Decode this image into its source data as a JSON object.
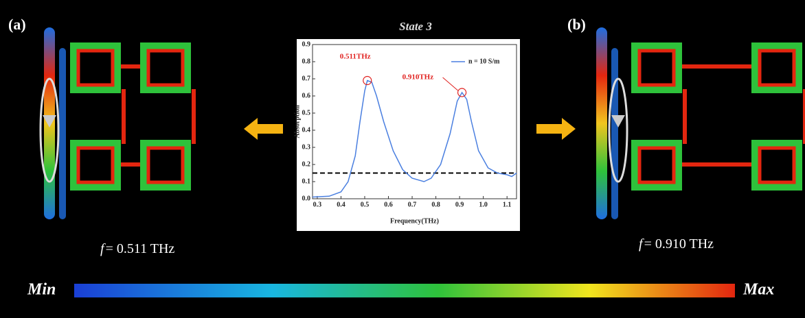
{
  "panels": [
    {
      "label": "(a)",
      "freq_symbol": "f",
      "freq_text": "= 0.511 THz"
    },
    {
      "label": "(b)",
      "freq_symbol": "f",
      "freq_text": "= 0.910 THz"
    }
  ],
  "colorbar": {
    "min_label": "Min",
    "max_label": "Max"
  },
  "chart_data": {
    "type": "line",
    "title": "State 3",
    "x_label": "Frequency(THz)",
    "y_label": "Absorption",
    "x": [
      0.28,
      0.35,
      0.4,
      0.43,
      0.46,
      0.48,
      0.5,
      0.511,
      0.53,
      0.55,
      0.58,
      0.62,
      0.66,
      0.7,
      0.75,
      0.78,
      0.82,
      0.86,
      0.89,
      0.91,
      0.93,
      0.95,
      0.98,
      1.02,
      1.06,
      1.1,
      1.12,
      1.14
    ],
    "series": [
      {
        "name": "n = 10 S/m",
        "color": "#4a7fe0",
        "values": [
          0.01,
          0.015,
          0.04,
          0.1,
          0.25,
          0.45,
          0.63,
          0.69,
          0.68,
          0.6,
          0.45,
          0.28,
          0.17,
          0.12,
          0.1,
          0.12,
          0.2,
          0.38,
          0.57,
          0.62,
          0.58,
          0.45,
          0.28,
          0.18,
          0.15,
          0.14,
          0.13,
          0.15
        ]
      }
    ],
    "threshold": 0.15,
    "annotations": [
      {
        "text": "0.511THz",
        "x": 0.511,
        "y": 0.69,
        "color": "#e0201e"
      },
      {
        "text": "0.910THz",
        "x": 0.91,
        "y": 0.62,
        "color": "#e0201e"
      }
    ],
    "xlim": [
      0.28,
      1.14
    ],
    "ylim": [
      0,
      0.9
    ],
    "xticks": [
      0.3,
      0.4,
      0.5,
      0.6,
      0.7,
      0.8,
      0.9,
      {
        "value": 1.0,
        "label": "1.0"
      },
      1.1
    ],
    "yticks": [
      {
        "value": 0.0,
        "label": "0.0"
      },
      0.1,
      0.2,
      0.3,
      0.4,
      0.5,
      0.6,
      0.7,
      0.8,
      0.9
    ],
    "legend": "upper right"
  }
}
